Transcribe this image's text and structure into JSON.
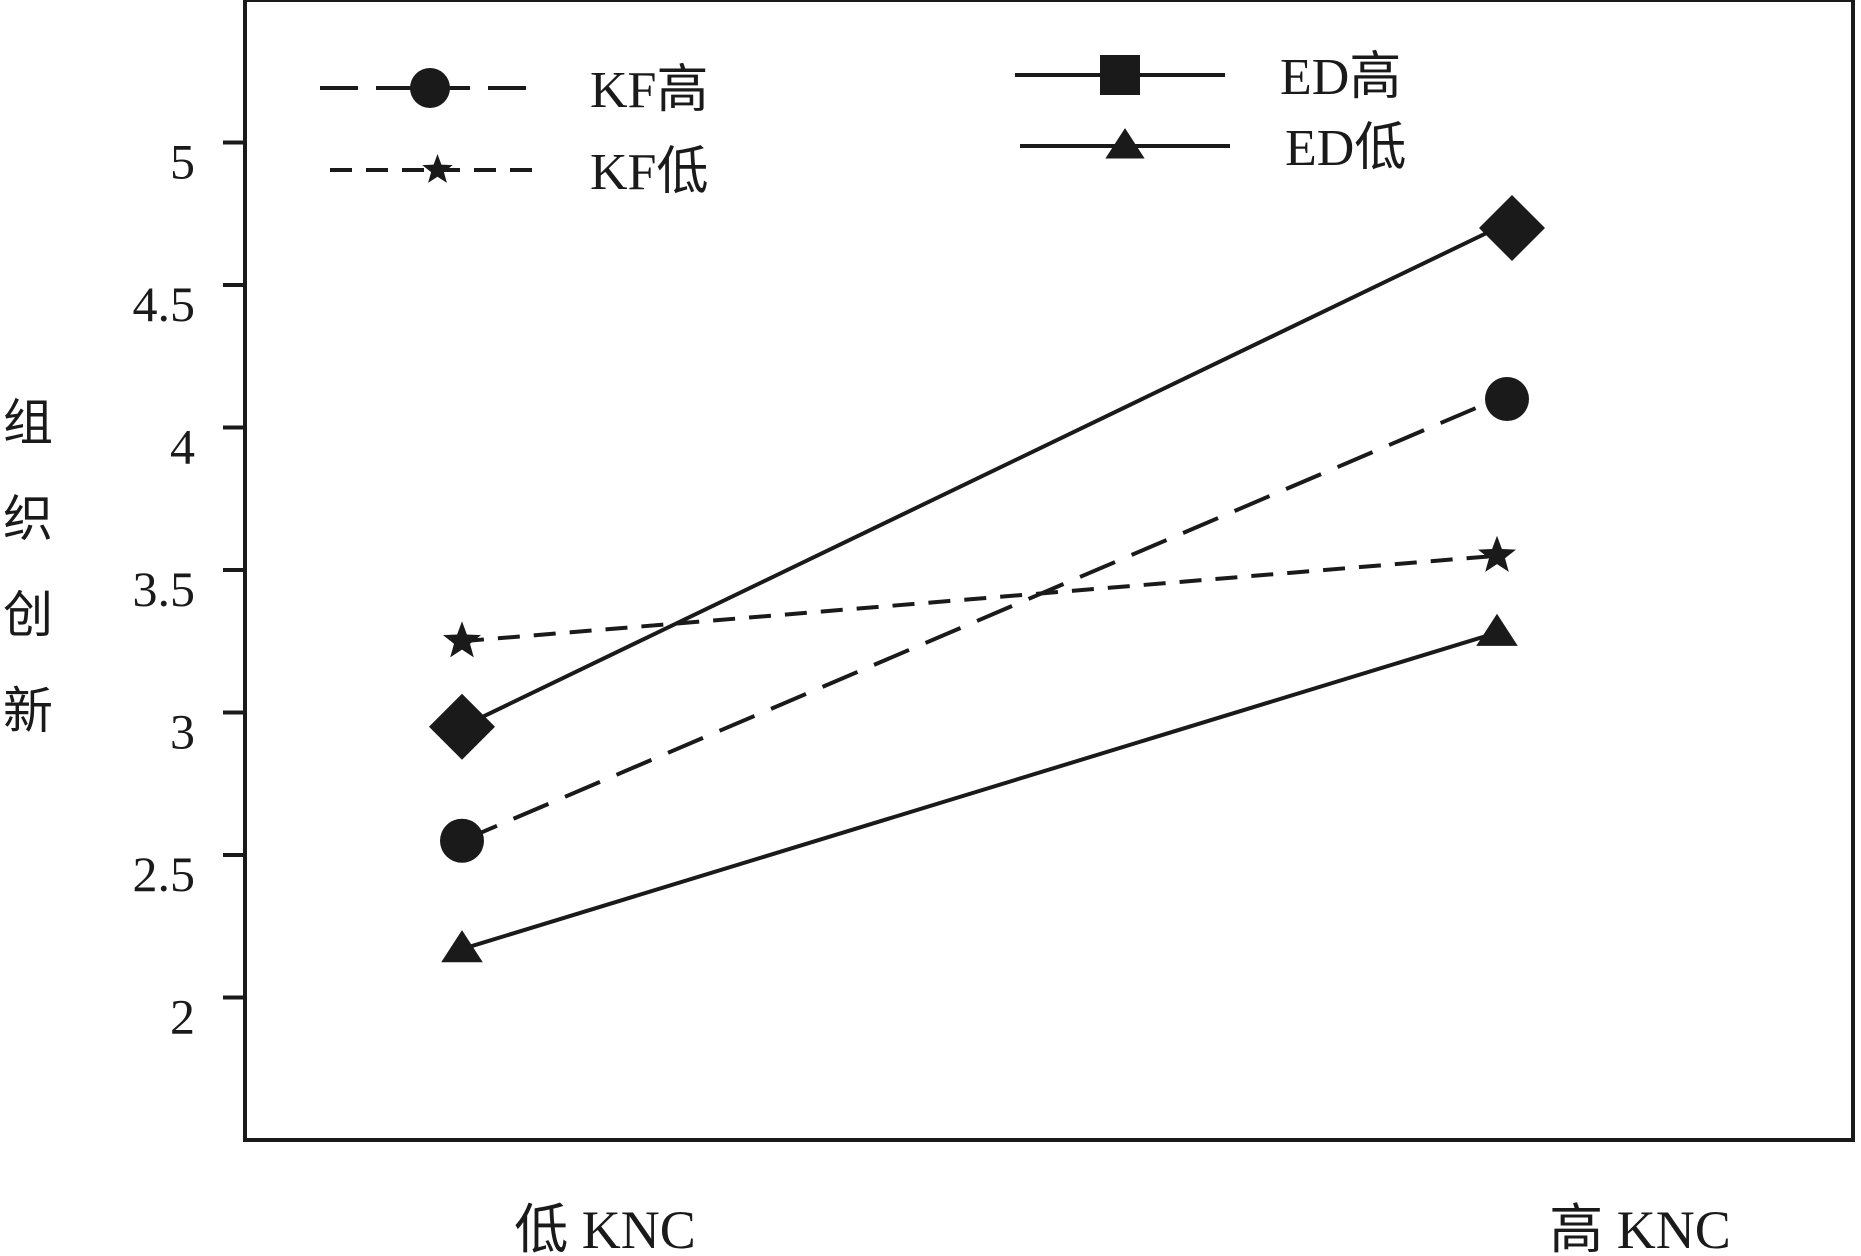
{
  "chart_data": {
    "type": "line",
    "title": "",
    "xlabel": "",
    "ylabel": "组织创新",
    "categories": [
      "低 KNC",
      "高 KNC"
    ],
    "ylim": [
      1.5,
      5.5
    ],
    "yticks": [
      {
        "value": 2,
        "label": "2"
      },
      {
        "value": 2.5,
        "label": "2.5"
      },
      {
        "value": 3,
        "label": "3"
      },
      {
        "value": 3.5,
        "label": "3.5"
      },
      {
        "value": 4,
        "label": "4"
      },
      {
        "value": 4.5,
        "label": "4.5"
      },
      {
        "value": 5,
        "label": "5"
      }
    ],
    "grid": false,
    "legend_position": "top",
    "series": [
      {
        "name": "ED高",
        "values": [
          2.95,
          4.7
        ],
        "line_style": "solid",
        "marker": "diamond",
        "legend_marker": "square"
      },
      {
        "name": "KF高",
        "values": [
          2.55,
          4.1
        ],
        "line_style": "long-dash",
        "marker": "circle"
      },
      {
        "name": "KF低",
        "values": [
          3.25,
          3.55
        ],
        "line_style": "short-dash",
        "marker": "star"
      },
      {
        "name": "ED低",
        "values": [
          2.17,
          3.28
        ],
        "line_style": "solid",
        "marker": "triangle"
      }
    ],
    "colors": {
      "line": "#1a1a1a",
      "background": "#ffffff"
    }
  }
}
